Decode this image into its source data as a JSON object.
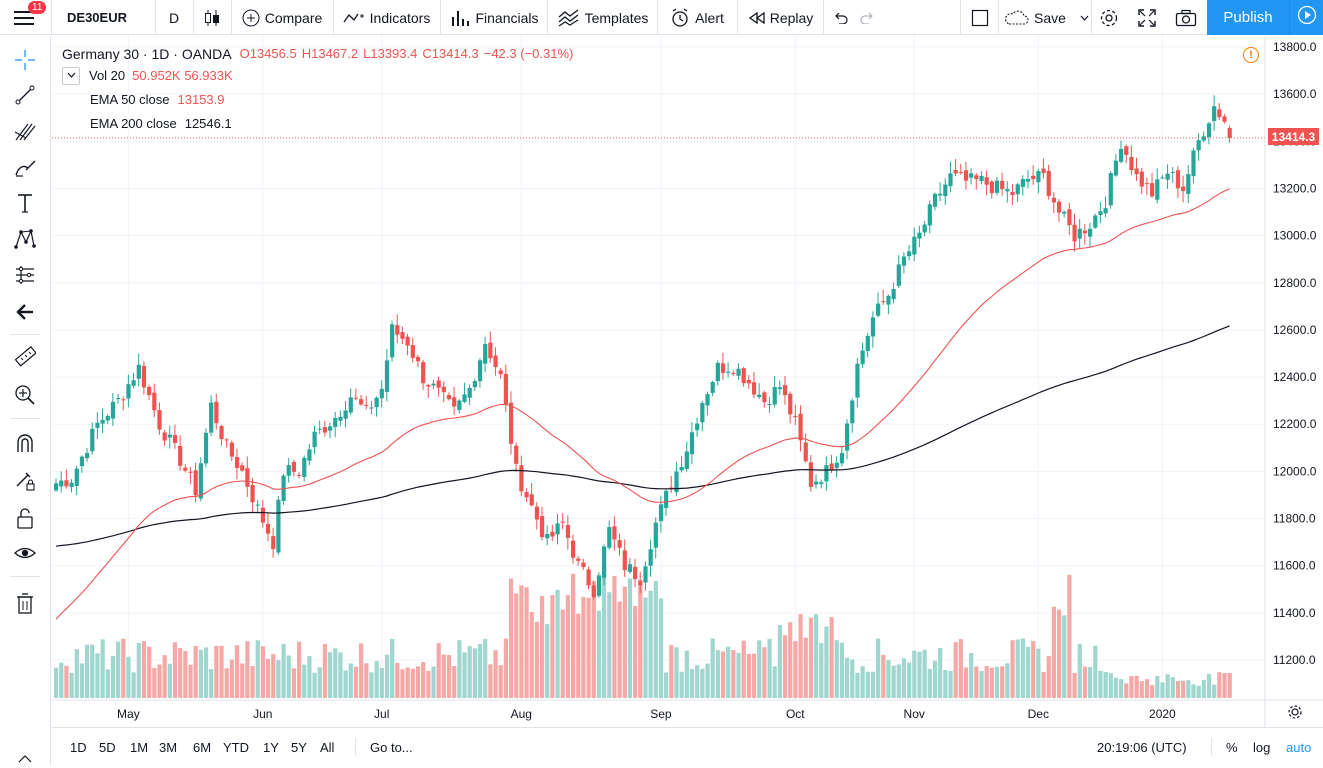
{
  "topbar": {
    "symbol": "DE30EUR",
    "interval": "D",
    "compare": "Compare",
    "indicators": "Indicators",
    "financials": "Financials",
    "templates": "Templates",
    "alert": "Alert",
    "replay": "Replay",
    "save": "Save",
    "publish": "Publish",
    "notifications": "11"
  },
  "legend": {
    "title": "Germany 30 · 1D · OANDA",
    "open": "O13456.5",
    "high": "H13467.2",
    "low": "L13393.4",
    "close": "C13414.3",
    "change": "−42.3 (−0.31%)",
    "vol_label": "Vol 20",
    "vol_values": "50.952K 56.933K",
    "ema50_label": "EMA 50 close",
    "ema50_value": "13153.9",
    "ema200_label": "EMA 200 close",
    "ema200_value": "12546.1",
    "warning": "!"
  },
  "price_label": "13414.3",
  "bottombar": {
    "ranges": [
      "1D",
      "5D",
      "1M",
      "3M",
      "6M",
      "YTD",
      "1Y",
      "5Y",
      "All"
    ],
    "goto": "Go to...",
    "time": "20:19:06 (UTC)",
    "percent": "%",
    "log": "log",
    "auto": "auto"
  },
  "colors": {
    "up": "#26a69a",
    "down": "#ef5350",
    "up_volume": "#9fd6cf",
    "down_volume": "#f5a8a6",
    "ema50": "#ef5350",
    "ema200": "#131722",
    "accent": "#2196f3"
  },
  "chart_data": {
    "type": "candlestick",
    "title": "Germany 30 · 1D · OANDA",
    "symbol": "DE30EUR",
    "ylim": [
      11000,
      13850
    ],
    "y_ticks": [
      11200,
      11400,
      11600,
      11800,
      12000,
      12200,
      12400,
      12600,
      12800,
      13000,
      13200,
      13400,
      13600,
      13800
    ],
    "x_ticks": [
      "May",
      "Jun",
      "Jul",
      "Aug",
      "Sep",
      "Oct",
      "Nov",
      "Dec",
      "2020"
    ],
    "last_price": 13414.3,
    "anchors": [
      [
        0,
        11950
      ],
      [
        3,
        11970
      ],
      [
        8,
        12200
      ],
      [
        12,
        12300
      ],
      [
        16,
        12440
      ],
      [
        20,
        12200
      ],
      [
        24,
        12050
      ],
      [
        27,
        11920
      ],
      [
        30,
        12280
      ],
      [
        33,
        12100
      ],
      [
        36,
        12000
      ],
      [
        39,
        11840
      ],
      [
        42,
        11700
      ],
      [
        44,
        12000
      ],
      [
        47,
        12000
      ],
      [
        50,
        12150
      ],
      [
        54,
        12230
      ],
      [
        57,
        12320
      ],
      [
        60,
        12250
      ],
      [
        63,
        12350
      ],
      [
        65,
        12600
      ],
      [
        68,
        12550
      ],
      [
        71,
        12400
      ],
      [
        74,
        12330
      ],
      [
        77,
        12250
      ],
      [
        80,
        12350
      ],
      [
        83,
        12550
      ],
      [
        86,
        12400
      ],
      [
        89,
        12000
      ],
      [
        92,
        11850
      ],
      [
        95,
        11700
      ],
      [
        98,
        11780
      ],
      [
        101,
        11600
      ],
      [
        104,
        11500
      ],
      [
        107,
        11750
      ],
      [
        110,
        11600
      ],
      [
        113,
        11550
      ],
      [
        116,
        11780
      ],
      [
        119,
        11950
      ],
      [
        122,
        12100
      ],
      [
        125,
        12300
      ],
      [
        128,
        12440
      ],
      [
        131,
        12450
      ],
      [
        134,
        12380
      ],
      [
        137,
        12300
      ],
      [
        140,
        12360
      ],
      [
        143,
        12200
      ],
      [
        146,
        11950
      ],
      [
        149,
        12000
      ],
      [
        152,
        12100
      ],
      [
        155,
        12450
      ],
      [
        158,
        12650
      ],
      [
        161,
        12750
      ],
      [
        164,
        12900
      ],
      [
        167,
        13000
      ],
      [
        170,
        13150
      ],
      [
        173,
        13250
      ],
      [
        176,
        13230
      ],
      [
        179,
        13230
      ],
      [
        182,
        13200
      ],
      [
        185,
        13180
      ],
      [
        188,
        13240
      ],
      [
        191,
        13250
      ],
      [
        194,
        13100
      ],
      [
        197,
        13000
      ],
      [
        200,
        13050
      ],
      [
        203,
        13150
      ],
      [
        206,
        13400
      ],
      [
        209,
        13250
      ],
      [
        212,
        13180
      ],
      [
        215,
        13270
      ],
      [
        218,
        13200
      ],
      [
        221,
        13400
      ],
      [
        224,
        13550
      ],
      [
        227,
        13460
      ],
      [
        228,
        13414
      ]
    ]
  }
}
